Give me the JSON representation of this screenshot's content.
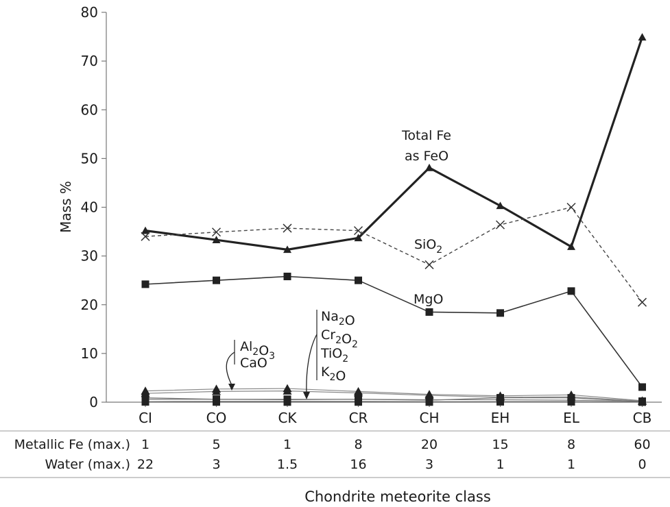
{
  "chart_data": {
    "type": "line",
    "xlabel": "Chondrite meteorite class",
    "ylabel": "Mass %",
    "ylim": [
      0,
      80
    ],
    "yticks": [
      0,
      10,
      20,
      30,
      40,
      50,
      60,
      70,
      80
    ],
    "grid": false,
    "categories": [
      "CI",
      "CO",
      "CK",
      "CR",
      "CH",
      "EH",
      "EL",
      "CB"
    ],
    "series": [
      {
        "name": "Total Fe as FeO",
        "marker": "triangle",
        "style": "solid-bold",
        "color": "#222222",
        "values": [
          35.2,
          33.3,
          31.3,
          33.7,
          48.1,
          40.3,
          31.9,
          74.9
        ]
      },
      {
        "name": "SiO2",
        "marker": "x",
        "style": "dashed",
        "color": "#444444",
        "values": [
          34.0,
          34.9,
          35.7,
          35.2,
          28.2,
          36.4,
          40.0,
          20.5
        ]
      },
      {
        "name": "MgO",
        "marker": "square",
        "style": "solid",
        "color": "#333333",
        "values": [
          24.2,
          25.0,
          25.8,
          25.0,
          18.5,
          18.3,
          22.8,
          3.1
        ]
      },
      {
        "name": "Al2O3",
        "marker": "triangle",
        "style": "thin",
        "color": "#888888",
        "values": [
          2.3,
          2.7,
          2.8,
          2.2,
          1.6,
          1.3,
          1.5,
          0.3
        ]
      },
      {
        "name": "CaO",
        "marker": "triangle",
        "style": "thin",
        "color": "#888888",
        "values": [
          1.8,
          2.2,
          2.3,
          1.9,
          1.4,
          1.0,
          1.1,
          0.2
        ]
      },
      {
        "name": "Na2O",
        "marker": "square",
        "style": "thin",
        "color": "#777777",
        "values": [
          0.9,
          0.6,
          0.5,
          0.6,
          0.4,
          0.9,
          0.9,
          0.1
        ]
      },
      {
        "name": "Cr2O2",
        "marker": "square",
        "style": "thin",
        "color": "#777777",
        "values": [
          0.6,
          0.6,
          0.6,
          0.6,
          0.5,
          0.5,
          0.4,
          0.2
        ]
      },
      {
        "name": "TiO2",
        "marker": "square",
        "style": "thin",
        "color": "#666666",
        "values": [
          0.1,
          0.15,
          0.15,
          0.15,
          0.1,
          0.1,
          0.1,
          0.05
        ]
      },
      {
        "name": "K2O",
        "marker": "square",
        "style": "thin",
        "color": "#666666",
        "values": [
          0.06,
          0.04,
          0.03,
          0.04,
          0.03,
          0.09,
          0.08,
          0.02
        ]
      }
    ],
    "annotations": {
      "total_fe_line1": "Total Fe",
      "total_fe_line2": "as FeO",
      "sio2": "SiO",
      "sio2_sub": "2",
      "mgo": "MgO",
      "group_left": [
        {
          "base": "Al",
          "sub1": "2",
          "mid": "O",
          "sub2": "3"
        },
        {
          "base": "CaO",
          "sub1": "",
          "mid": "",
          "sub2": ""
        }
      ],
      "group_right": [
        {
          "base": "Na",
          "sub1": "2",
          "mid": "O",
          "sub2": ""
        },
        {
          "base": "Cr",
          "sub1": "2",
          "mid": "O",
          "sub2": "2"
        },
        {
          "base": "TiO",
          "sub1": "2",
          "mid": "",
          "sub2": ""
        },
        {
          "base": "K",
          "sub1": "2",
          "mid": "O",
          "sub2": ""
        }
      ]
    },
    "table": {
      "rows": [
        {
          "label": "Metallic Fe (max.)",
          "values": [
            "1",
            "5",
            "1",
            "8",
            "20",
            "15",
            "8",
            "60"
          ]
        },
        {
          "label": "Water (max.)",
          "values": [
            "22",
            "3",
            "1.5",
            "16",
            "3",
            "1",
            "1",
            "0"
          ]
        }
      ]
    }
  }
}
